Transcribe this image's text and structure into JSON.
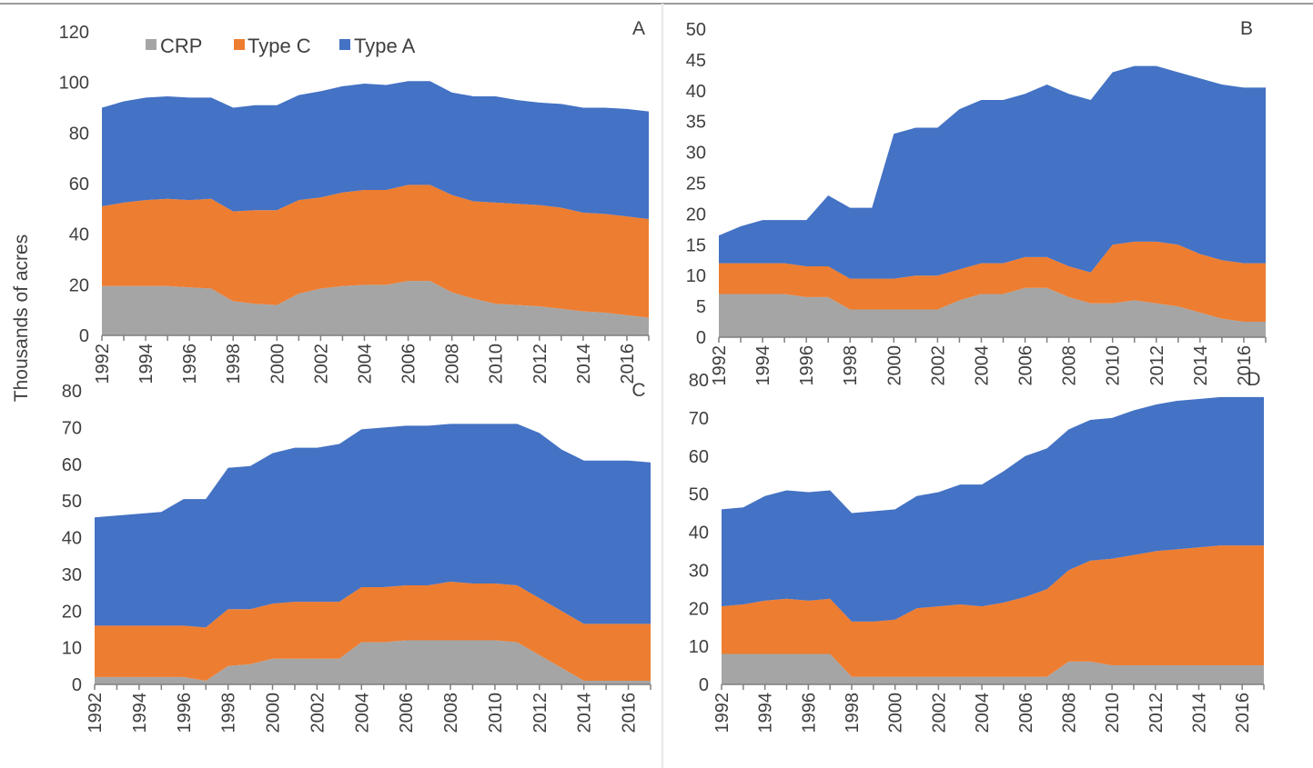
{
  "chart_data": {
    "type": "area",
    "stacked": true,
    "ylabel": "Thousands of acres",
    "x": [
      1992,
      1993,
      1994,
      1995,
      1996,
      1997,
      1998,
      1999,
      2000,
      2001,
      2002,
      2003,
      2004,
      2005,
      2006,
      2007,
      2008,
      2009,
      2010,
      2011,
      2012,
      2013,
      2014,
      2015,
      2016,
      2017
    ],
    "x_tick_labels": [
      "1992",
      "1994",
      "1996",
      "1998",
      "2000",
      "2002",
      "2004",
      "2006",
      "2008",
      "2010",
      "2012",
      "2014",
      "2016"
    ],
    "legend": {
      "placement": "top-left of panel A",
      "entries": [
        {
          "name": "CRP",
          "color": "#a5a5a5"
        },
        {
          "name": "Type C",
          "color": "#ed7d31"
        },
        {
          "name": "Type A",
          "color": "#4472c4"
        }
      ]
    },
    "panels": [
      {
        "label": "A",
        "ylim": [
          0,
          120
        ],
        "yticks": [
          0,
          20,
          40,
          60,
          80,
          100,
          120
        ],
        "series": [
          {
            "name": "CRP",
            "color": "#a5a5a5",
            "values": [
              19.5,
              19.5,
              19.5,
              19.5,
              19,
              18.5,
              13.5,
              12.5,
              12,
              16.5,
              18.5,
              19.5,
              20,
              20,
              21.5,
              21.5,
              17,
              14.5,
              12.5,
              12,
              11.5,
              10.5,
              9.5,
              9,
              8,
              7
            ]
          },
          {
            "name": "Type C",
            "color": "#ed7d31",
            "values": [
              31.5,
              33,
              34,
              34.5,
              34.5,
              35.5,
              35.5,
              37,
              37.5,
              37,
              36,
              37,
              37.5,
              37.5,
              38,
              38,
              38.5,
              38.5,
              40,
              40,
              40,
              40,
              39,
              39,
              39,
              39
            ]
          },
          {
            "name": "Type A",
            "color": "#4472c4",
            "values": [
              39,
              40,
              40.5,
              40.5,
              40.5,
              40,
              41,
              41.5,
              41.5,
              41.5,
              42,
              42,
              42,
              41.5,
              41,
              41,
              40.5,
              41.5,
              42,
              41,
              40.5,
              41,
              41.5,
              42,
              42.5,
              42.5
            ]
          }
        ]
      },
      {
        "label": "B",
        "ylim": [
          0,
          50
        ],
        "yticks": [
          0,
          5,
          10,
          15,
          20,
          25,
          30,
          35,
          40,
          45,
          50
        ],
        "series": [
          {
            "name": "CRP",
            "color": "#a5a5a5",
            "values": [
              7,
              7,
              7,
              7,
              6.5,
              6.5,
              4.5,
              4.5,
              4.5,
              4.5,
              4.5,
              6,
              7,
              7,
              8,
              8,
              6.5,
              5.5,
              5.5,
              6,
              5.5,
              5,
              4,
              3,
              2.5,
              2.5
            ]
          },
          {
            "name": "Type C",
            "color": "#ed7d31",
            "values": [
              5,
              5,
              5,
              5,
              5,
              5,
              5,
              5,
              5,
              5.5,
              5.5,
              5,
              5,
              5,
              5,
              5,
              5,
              5,
              9.5,
              9.5,
              10,
              10,
              9.5,
              9.5,
              9.5,
              9.5
            ]
          },
          {
            "name": "Type A",
            "color": "#4472c4",
            "values": [
              4.5,
              6,
              7,
              7,
              7.5,
              11.5,
              11.5,
              11.5,
              23.5,
              24,
              24,
              26,
              26.5,
              26.5,
              26.5,
              28,
              28,
              28,
              28,
              28.5,
              28.5,
              28,
              28.5,
              28.5,
              28.5,
              28.5
            ]
          }
        ]
      },
      {
        "label": "C",
        "ylim": [
          0,
          80
        ],
        "yticks": [
          0,
          10,
          20,
          30,
          40,
          50,
          60,
          70,
          80
        ],
        "series": [
          {
            "name": "CRP",
            "color": "#a5a5a5",
            "values": [
              2,
              2,
              2,
              2,
              2,
              1,
              5,
              5.5,
              7,
              7,
              7,
              7,
              11.5,
              11.5,
              12,
              12,
              12,
              12,
              12,
              11.5,
              8,
              4.5,
              1,
              1,
              1,
              1
            ]
          },
          {
            "name": "Type C",
            "color": "#ed7d31",
            "values": [
              14,
              14,
              14,
              14,
              14,
              14.5,
              15.5,
              15,
              15,
              15.5,
              15.5,
              15.5,
              15,
              15,
              15,
              15,
              16,
              15.5,
              15.5,
              15.5,
              15.5,
              15.5,
              15.5,
              15.5,
              15.5,
              15.5
            ]
          },
          {
            "name": "Type A",
            "color": "#4472c4",
            "values": [
              29.5,
              30,
              30.5,
              31,
              34.5,
              35,
              38.5,
              39,
              41,
              42,
              42,
              43,
              43,
              43.5,
              43.5,
              43.5,
              43,
              43.5,
              43.5,
              44,
              45,
              44,
              44.5,
              44.5,
              44.5,
              44
            ]
          }
        ]
      },
      {
        "label": "D",
        "ylim": [
          0,
          80
        ],
        "yticks": [
          0,
          10,
          20,
          30,
          40,
          50,
          60,
          70,
          80
        ],
        "series": [
          {
            "name": "CRP",
            "color": "#a5a5a5",
            "values": [
              8,
              8,
              8,
              8,
              8,
              8,
              2,
              2,
              2,
              2,
              2,
              2,
              2,
              2,
              2,
              2,
              6,
              6,
              5,
              5,
              5,
              5,
              5,
              5,
              5,
              5
            ]
          },
          {
            "name": "Type C",
            "color": "#ed7d31",
            "values": [
              12.5,
              13,
              14,
              14.5,
              14,
              14.5,
              14.5,
              14.5,
              15,
              18,
              18.5,
              19,
              18.5,
              19.5,
              21,
              23,
              24,
              26.5,
              28,
              29,
              30,
              30.5,
              31,
              31.5,
              31.5,
              31.5
            ]
          },
          {
            "name": "Type A",
            "color": "#4472c4",
            "values": [
              25.5,
              25.5,
              27.5,
              28.5,
              28.5,
              28.5,
              28.5,
              29,
              29,
              29.5,
              30,
              31.5,
              32,
              34.5,
              37,
              37,
              37,
              37,
              37,
              38,
              38.5,
              39,
              39,
              39,
              39,
              39
            ]
          }
        ]
      }
    ]
  }
}
